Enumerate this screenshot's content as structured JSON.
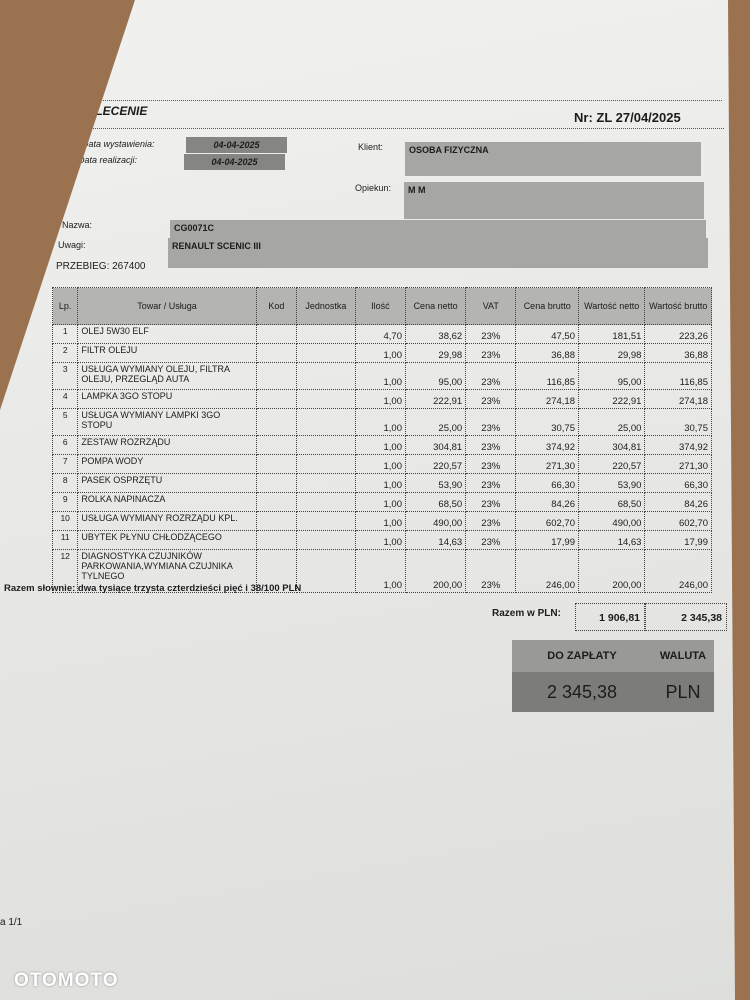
{
  "doc": {
    "title": "ZLECENIE",
    "number": "Nr: ZL 27/04/2025",
    "issue_date_label": "Data wystawienia:",
    "issue_date": "04-04-2025",
    "realization_date_label": "Data realizacji:",
    "realization_date": "04-04-2025",
    "client_label": "Klient:",
    "client": "OSOBA FIZYCZNA",
    "guardian_label": "Opiekun:",
    "guardian": "M M",
    "name_label": "Nazwa:",
    "name": "CG0071C",
    "notes_label": "Uwagi:",
    "notes": "RENAULT SCENIC III",
    "mileage": "PRZEBIEG: 267400"
  },
  "table": {
    "headers": [
      "Lp.",
      "Towar / Usługa",
      "Kod",
      "Jednostka",
      "Ilość",
      "Cena netto",
      "VAT",
      "Cena brutto",
      "Wartość netto",
      "Wartość brutto"
    ],
    "rows": [
      [
        "1",
        "OLEJ 5W30 ELF",
        "",
        "",
        "4,70",
        "38,62",
        "23%",
        "47,50",
        "181,51",
        "223,26"
      ],
      [
        "2",
        "FILTR OLEJU",
        "",
        "",
        "1,00",
        "29,98",
        "23%",
        "36,88",
        "29,98",
        "36,88"
      ],
      [
        "3",
        "USŁUGA WYMIANY OLEJU, FILTRA OLEJU, PRZEGLĄD AUTA",
        "",
        "",
        "1,00",
        "95,00",
        "23%",
        "116,85",
        "95,00",
        "116,85"
      ],
      [
        "4",
        "LAMPKA 3GO STOPU",
        "",
        "",
        "1,00",
        "222,91",
        "23%",
        "274,18",
        "222,91",
        "274,18"
      ],
      [
        "5",
        "USŁUGA WYMIANY LAMPKI 3GO STOPU",
        "",
        "",
        "1,00",
        "25,00",
        "23%",
        "30,75",
        "25,00",
        "30,75"
      ],
      [
        "6",
        "ZESTAW ROZRZĄDU",
        "",
        "",
        "1,00",
        "304,81",
        "23%",
        "374,92",
        "304,81",
        "374,92"
      ],
      [
        "7",
        "POMPA WODY",
        "",
        "",
        "1,00",
        "220,57",
        "23%",
        "271,30",
        "220,57",
        "271,30"
      ],
      [
        "8",
        "PASEK OSPRZĘTU",
        "",
        "",
        "1,00",
        "53,90",
        "23%",
        "66,30",
        "53,90",
        "66,30"
      ],
      [
        "9",
        "ROLKA NAPINACZA",
        "",
        "",
        "1,00",
        "68,50",
        "23%",
        "84,26",
        "68,50",
        "84,26"
      ],
      [
        "10",
        "USŁUGA WYMIANY ROZRZĄDU KPL.",
        "",
        "",
        "1,00",
        "490,00",
        "23%",
        "602,70",
        "490,00",
        "602,70"
      ],
      [
        "11",
        "UBYTEK PŁYNU CHŁODZĄCEGO",
        "",
        "",
        "1,00",
        "14,63",
        "23%",
        "17,99",
        "14,63",
        "17,99"
      ],
      [
        "12",
        "DIAGNOSTYKA CZUJNIKÓW PARKOWANIA,WYMIANA CZUJNIKA TYLNEGO",
        "",
        "",
        "1,00",
        "200,00",
        "23%",
        "246,00",
        "200,00",
        "246,00"
      ]
    ]
  },
  "totals": {
    "in_words": "Razem słownie: dwa tysiące trzysta czterdzieści pięć i 38/100 PLN",
    "label": "Razem w PLN:",
    "net": "1 906,81",
    "gross": "2 345,38"
  },
  "payment": {
    "due_label": "DO ZAPŁATY",
    "due": "2 345,38",
    "currency_label": "WALUTA",
    "currency": "PLN"
  },
  "footer": {
    "page": "a 1/1"
  },
  "watermark": "OTOMOTO",
  "colors": {
    "field_gray": "#a6a6a4",
    "header_gray": "#b4b4b2",
    "wood": "#9a7250"
  }
}
